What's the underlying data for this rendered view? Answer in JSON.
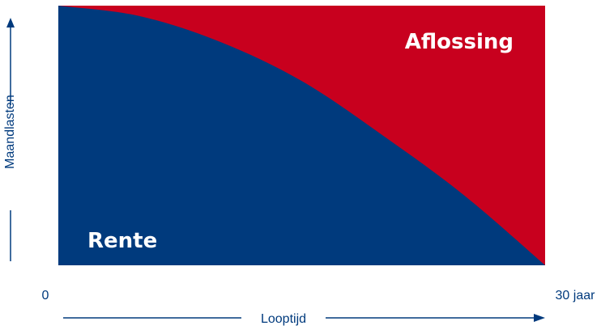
{
  "chart_data": {
    "type": "area",
    "xlabel": "Looptijd",
    "ylabel": "Maandlasten",
    "x_ticks": [
      "0",
      "30 jaar"
    ],
    "xlim": [
      0,
      30
    ],
    "ylim": [
      0,
      1
    ],
    "grid": false,
    "series": [
      {
        "name": "Rente",
        "color": "#003A7D",
        "x": [
          0,
          5,
          10,
          15,
          20,
          25,
          30
        ],
        "y": [
          1.0,
          0.96,
          0.86,
          0.71,
          0.5,
          0.27,
          0.0
        ]
      },
      {
        "name": "Aflossing",
        "color": "#C8001E",
        "x": [
          0,
          5,
          10,
          15,
          20,
          25,
          30
        ],
        "y": [
          0.0,
          0.04,
          0.14,
          0.29,
          0.5,
          0.73,
          1.0
        ]
      }
    ],
    "axis_color": "#003A7D"
  }
}
